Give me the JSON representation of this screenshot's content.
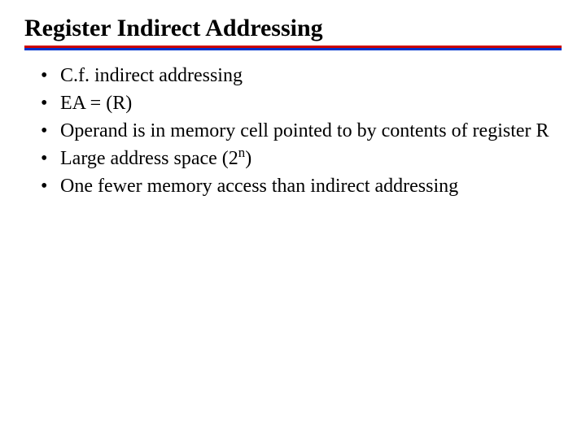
{
  "title": "Register Indirect Addressing",
  "rule": {
    "red": "#cc0000",
    "blue": "#0033cc"
  },
  "bullets": [
    "C.f. indirect addressing",
    "EA = (R)",
    "Operand is in memory cell pointed to by contents of register R",
    "Large address space (2^n)",
    "One fewer memory access than indirect addressing"
  ],
  "text_color": "#000000",
  "background_color": "#ffffff",
  "title_fontsize": 30,
  "body_fontsize": 24
}
